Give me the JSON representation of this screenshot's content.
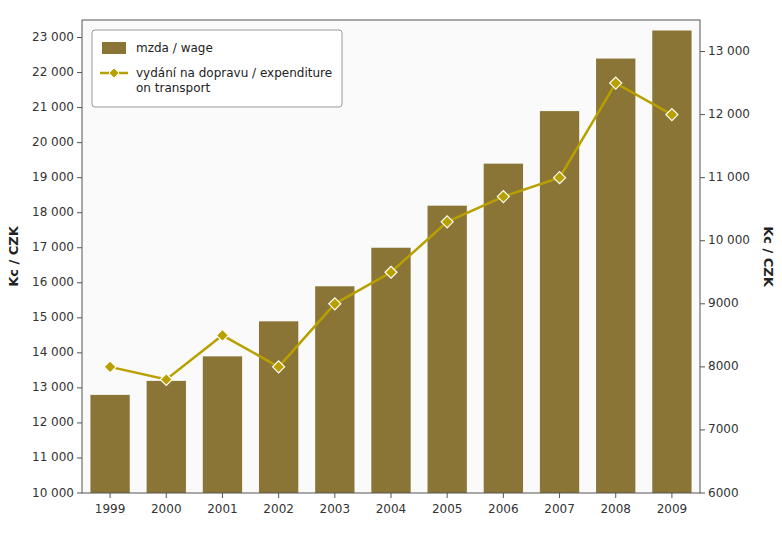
{
  "chart_data": {
    "type": "bar",
    "categories": [
      "1999",
      "2000",
      "2001",
      "2002",
      "2003",
      "2004",
      "2005",
      "2006",
      "2007",
      "2008",
      "2009"
    ],
    "series": [
      {
        "name": "mzda / wage",
        "type": "bar",
        "color": "#8B7536",
        "values": [
          12800,
          13200,
          13900,
          14900,
          15900,
          17000,
          18200,
          19400,
          20900,
          22400,
          23200
        ]
      },
      {
        "name": "vydání na dopravu / expenditure\non transport",
        "type": "line",
        "color": "#B8A000",
        "marker": "diamond",
        "axis": "y2",
        "values": [
          8000,
          7800,
          8500,
          8000,
          9000,
          9500,
          10300,
          10700,
          11000,
          12500,
          12000
        ]
      }
    ],
    "ylabel": "Kc / CZK",
    "y2label": "Kc / CZK",
    "ylim": [
      10000,
      23500
    ],
    "yticks": [
      {
        "value": 10000,
        "label": "10 000"
      },
      {
        "value": 11000,
        "label": "11 000"
      },
      {
        "value": 12000,
        "label": "12 000"
      },
      {
        "value": 13000,
        "label": "13 000"
      },
      {
        "value": 14000,
        "label": "14 000"
      },
      {
        "value": 15000,
        "label": "15 000"
      },
      {
        "value": 16000,
        "label": "16 000"
      },
      {
        "value": 17000,
        "label": "17 000"
      },
      {
        "value": 18000,
        "label": "18 000"
      },
      {
        "value": 19000,
        "label": "19 000"
      },
      {
        "value": 20000,
        "label": "20 000"
      },
      {
        "value": 21000,
        "label": "21 000"
      },
      {
        "value": 22000,
        "label": "22 000"
      },
      {
        "value": 23000,
        "label": "23 000"
      }
    ],
    "y2lim": [
      6000,
      13500
    ],
    "y2ticks": [
      6000,
      7000,
      8000,
      9000,
      {
        "value": 10000,
        "label": "10 000"
      },
      {
        "value": 11000,
        "label": "11 000"
      },
      {
        "value": 12000,
        "label": "12 000"
      },
      {
        "value": 13000,
        "label": "13 000"
      }
    ],
    "grid": false,
    "legend": "upper left"
  }
}
